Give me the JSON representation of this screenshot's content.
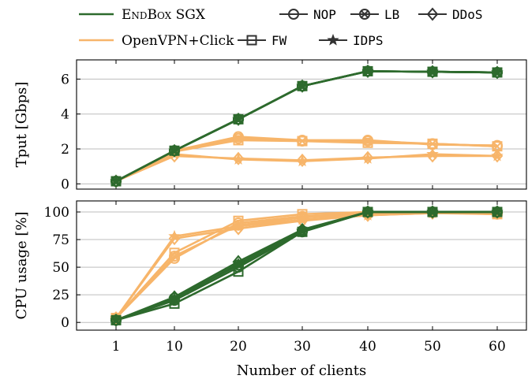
{
  "chart_data": {
    "type": "line",
    "xlabel": "Number of clients",
    "categories": [
      "1",
      "10",
      "20",
      "30",
      "40",
      "50",
      "60"
    ],
    "legend": {
      "systems": [
        {
          "name": "EndBox SGX",
          "color": "#2d6a2d"
        },
        {
          "name": "OpenVPN+Click",
          "color": "#f7b56a"
        }
      ],
      "markers": [
        {
          "name": "NOP",
          "marker": "circle"
        },
        {
          "name": "LB",
          "marker": "otimes"
        },
        {
          "name": "DDoS",
          "marker": "diamond"
        },
        {
          "name": "FW",
          "marker": "square"
        },
        {
          "name": "IDPS",
          "marker": "star"
        }
      ]
    },
    "panels": [
      {
        "ylabel": "Tput [Gbps]",
        "ylim": [
          -0.3,
          7.1
        ],
        "yticks": [
          0,
          2,
          4,
          6
        ],
        "series": [
          {
            "system": "EndBox SGX",
            "marker": "circle",
            "values": [
              0.15,
              1.9,
              3.7,
              5.6,
              6.45,
              6.42,
              6.38
            ]
          },
          {
            "system": "EndBox SGX",
            "marker": "otimes",
            "values": [
              0.15,
              1.9,
              3.7,
              5.6,
              6.45,
              6.42,
              6.38
            ]
          },
          {
            "system": "EndBox SGX",
            "marker": "diamond",
            "values": [
              0.15,
              1.9,
              3.7,
              5.6,
              6.45,
              6.42,
              6.38
            ]
          },
          {
            "system": "EndBox SGX",
            "marker": "square",
            "values": [
              0.15,
              1.9,
              3.7,
              5.6,
              6.45,
              6.42,
              6.38
            ]
          },
          {
            "system": "EndBox SGX",
            "marker": "star",
            "values": [
              0.15,
              1.9,
              3.7,
              5.6,
              6.45,
              6.42,
              6.38
            ]
          },
          {
            "system": "OpenVPN+Click",
            "marker": "circle",
            "values": [
              0.15,
              1.9,
              2.7,
              2.5,
              2.5,
              2.25,
              2.2
            ]
          },
          {
            "system": "OpenVPN+Click",
            "marker": "otimes",
            "values": [
              0.15,
              1.85,
              2.6,
              2.45,
              2.45,
              2.3,
              2.15
            ]
          },
          {
            "system": "OpenVPN+Click",
            "marker": "diamond",
            "values": [
              0.15,
              1.6,
              1.45,
              1.35,
              1.5,
              1.6,
              1.6
            ]
          },
          {
            "system": "OpenVPN+Click",
            "marker": "square",
            "values": [
              0.15,
              1.85,
              2.5,
              2.45,
              2.35,
              2.3,
              2.15
            ]
          },
          {
            "system": "OpenVPN+Click",
            "marker": "star",
            "values": [
              0.15,
              1.7,
              1.4,
              1.3,
              1.45,
              1.7,
              1.6
            ]
          }
        ]
      },
      {
        "ylabel": "CPU usage [%]",
        "ylim": [
          -7,
          110
        ],
        "yticks": [
          0,
          25,
          50,
          75,
          100
        ],
        "series": [
          {
            "system": "EndBox SGX",
            "marker": "circle",
            "values": [
              2,
              20,
              50,
              82,
              100,
              100,
              100
            ]
          },
          {
            "system": "EndBox SGX",
            "marker": "otimes",
            "values": [
              2,
              22,
              52,
              83,
              100,
              100,
              100
            ]
          },
          {
            "system": "EndBox SGX",
            "marker": "diamond",
            "values": [
              2,
              23,
              55,
              84,
              100,
              100,
              100
            ]
          },
          {
            "system": "EndBox SGX",
            "marker": "square",
            "values": [
              2,
              17,
              46,
              82,
              100,
              100,
              100
            ]
          },
          {
            "system": "EndBox SGX",
            "marker": "star",
            "values": [
              2,
              21,
              53,
              83,
              100,
              100,
              100
            ]
          },
          {
            "system": "OpenVPN+Click",
            "marker": "circle",
            "values": [
              4,
              58,
              90,
              96,
              99,
              100,
              99
            ]
          },
          {
            "system": "OpenVPN+Click",
            "marker": "otimes",
            "values": [
              4,
              60,
              88,
              95,
              98,
              100,
              98
            ]
          },
          {
            "system": "OpenVPN+Click",
            "marker": "diamond",
            "values": [
              4,
              76,
              85,
              92,
              97,
              99,
              99
            ]
          },
          {
            "system": "OpenVPN+Click",
            "marker": "square",
            "values": [
              4,
              63,
              92,
              98,
              100,
              100,
              98
            ]
          },
          {
            "system": "OpenVPN+Click",
            "marker": "star",
            "values": [
              4,
              78,
              87,
              93,
              97,
              99,
              98
            ]
          }
        ]
      }
    ]
  }
}
